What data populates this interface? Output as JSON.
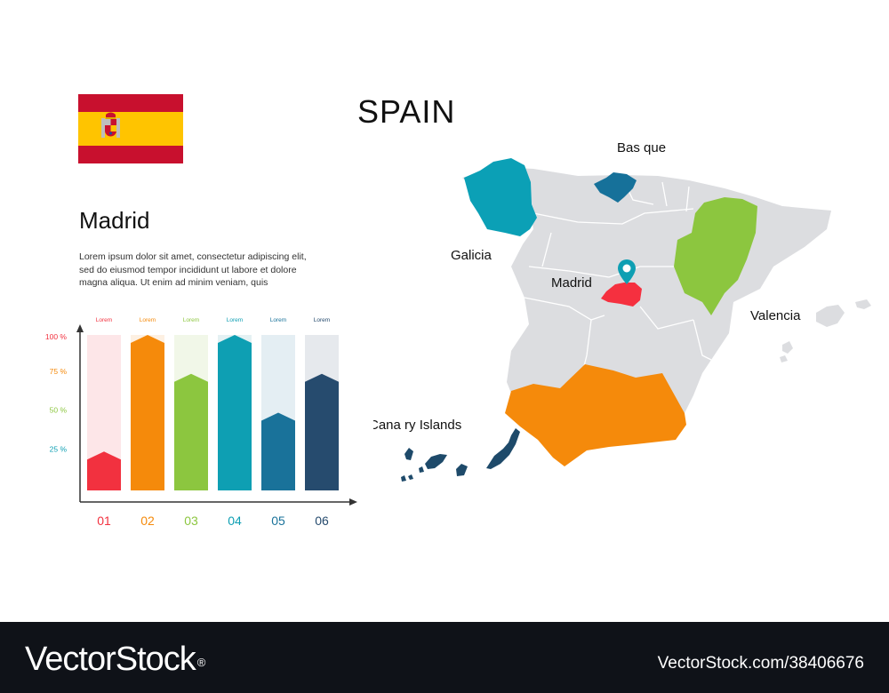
{
  "title": "SPAIN",
  "flag_icon": "spain-flag",
  "info": {
    "city": "Madrid",
    "description": "Lorem ipsum dolor sit amet, consectetur adipiscing elit, sed do eiusmod tempor incididunt ut labore et dolore magna aliqua. Ut enim ad minim veniam, quis"
  },
  "chart_data": {
    "type": "bar",
    "categories": [
      "01",
      "02",
      "03",
      "04",
      "05",
      "06"
    ],
    "top_labels": [
      "Lorem",
      "Lorem",
      "Lorem",
      "Lorem",
      "Lorem",
      "Lorem"
    ],
    "values": [
      25,
      100,
      75,
      100,
      50,
      75
    ],
    "yticks": [
      "100 %",
      "75 %",
      "50 %",
      "25 %"
    ],
    "ytick_values": [
      100,
      75,
      50,
      25
    ],
    "ylim": [
      0,
      100
    ],
    "colors": [
      "#f2313f",
      "#f58a0b",
      "#8cc63f",
      "#0e9fb3",
      "#19729a",
      "#264b6e"
    ],
    "track_colors": [
      "#fde6e8",
      "#fdf0e2",
      "#f1f7e8",
      "#e4f1f3",
      "#e4eef3",
      "#e6e9ed"
    ],
    "tick_colors": [
      "#f2313f",
      "#f58a0b",
      "#8cc63f",
      "#0e9fb3"
    ]
  },
  "map": {
    "labels": {
      "basque": "Bas que",
      "galicia": "Galicia",
      "madrid": "Madrid",
      "valencia": "Valencia",
      "canary": "Cana ry Islands"
    },
    "colors": {
      "land": "#dcdde0",
      "galicia": "#0ba0b6",
      "basque": "#16719a",
      "aragon": "#8cc63f",
      "madrid": "#f5303f",
      "andalusia": "#f58a0b",
      "canary": "#1e4a6a"
    }
  },
  "footer": {
    "brand": "VectorStock",
    "reg_mark": "®",
    "image_id": "VectorStock.com/38406676"
  }
}
